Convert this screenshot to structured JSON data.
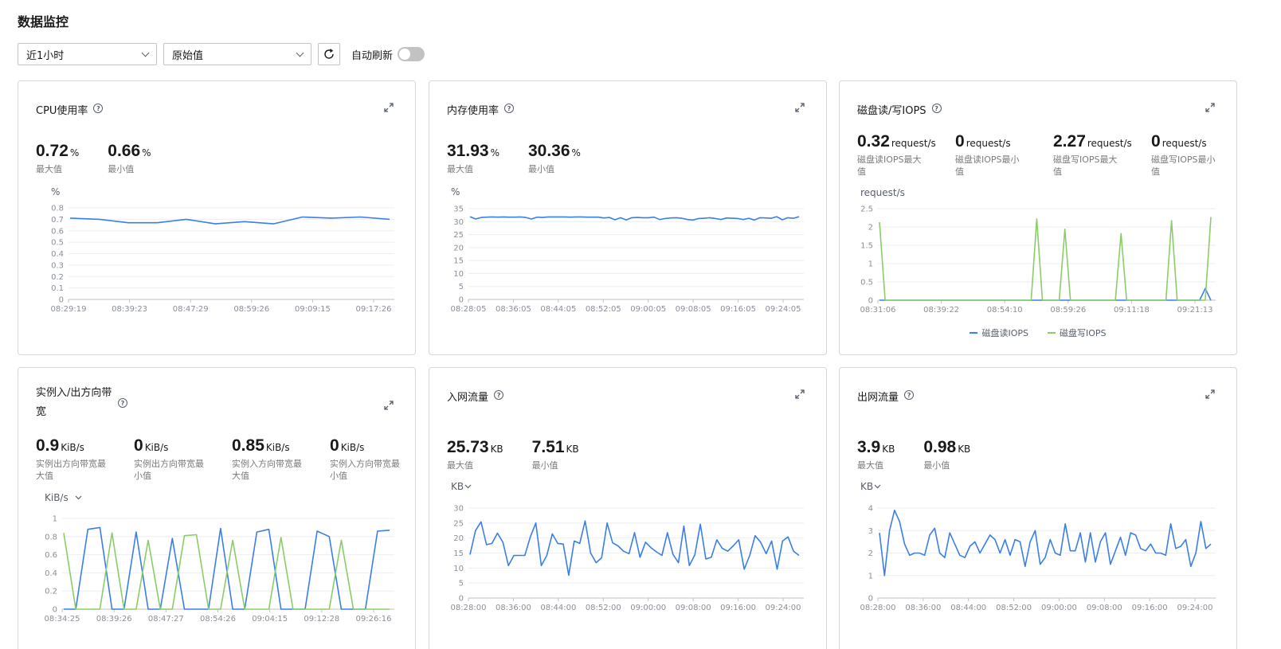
{
  "page": {
    "title": "数据监控"
  },
  "toolbar": {
    "time_range": "近1小时",
    "value_type": "原始值",
    "auto_refresh_label": "自动刷新",
    "auto_refresh_on": false
  },
  "colors": {
    "blue": "#3a7ee8",
    "green": "#8acd66",
    "grid": "#eceef2"
  },
  "cards": [
    {
      "title": "CPU使用率",
      "metrics": [
        {
          "value": "0.72",
          "unit": "%",
          "label": "最大值"
        },
        {
          "value": "0.66",
          "unit": "%",
          "label": "最小值"
        }
      ],
      "axis_unit": "%"
    },
    {
      "title": "内存使用率",
      "metrics": [
        {
          "value": "31.93",
          "unit": "%",
          "label": "最大值"
        },
        {
          "value": "30.36",
          "unit": "%",
          "label": "最小值"
        }
      ],
      "axis_unit": "%"
    },
    {
      "title": "磁盘读/写IOPS",
      "metrics": [
        {
          "value": "0.32",
          "unit": "request/s",
          "label": "磁盘读IOPS最大值"
        },
        {
          "value": "0",
          "unit": "request/s",
          "label": "磁盘读IOPS最小值"
        },
        {
          "value": "2.27",
          "unit": "request/s",
          "label": "磁盘写IOPS最大值"
        },
        {
          "value": "0",
          "unit": "request/s",
          "label": "磁盘写IOPS最小值"
        }
      ],
      "axis_unit": "request/s",
      "legend": [
        "磁盘读IOPS",
        "磁盘写IOPS"
      ]
    },
    {
      "title": "实例入/出方向带宽",
      "metrics": [
        {
          "value": "0.9",
          "unit": "KiB/s",
          "label": "实例出方向带宽最大值"
        },
        {
          "value": "0",
          "unit": "KiB/s",
          "label": "实例出方向带宽最小值"
        },
        {
          "value": "0.85",
          "unit": "KiB/s",
          "label": "实例入方向带宽最大值"
        },
        {
          "value": "0",
          "unit": "KiB/s",
          "label": "实例入方向带宽最小值"
        }
      ],
      "axis_unit": "KiB/s"
    },
    {
      "title": "入网流量",
      "metrics": [
        {
          "value": "25.73",
          "unit": "KB",
          "label": "最大值"
        },
        {
          "value": "7.51",
          "unit": "KB",
          "label": "最小值"
        }
      ],
      "axis_unit": "KB"
    },
    {
      "title": "出网流量",
      "metrics": [
        {
          "value": "3.9",
          "unit": "KB",
          "label": "最大值"
        },
        {
          "value": "0.98",
          "unit": "KB",
          "label": "最小值"
        }
      ],
      "axis_unit": "KB"
    }
  ],
  "chart_data": [
    {
      "type": "line",
      "yticks": [
        "0",
        "0.1",
        "0.2",
        "0.3",
        "0.4",
        "0.5",
        "0.6",
        "0.7",
        "0.8"
      ],
      "ylim": [
        0,
        0.8
      ],
      "xticks": [
        "08:29:19",
        "08:39:23",
        "08:47:29",
        "08:59:26",
        "09:09:15",
        "09:17:26"
      ],
      "series": [
        {
          "values": [
            0.71,
            0.7,
            0.67,
            0.67,
            0.7,
            0.66,
            0.68,
            0.66,
            0.72,
            0.71,
            0.72,
            0.7
          ]
        }
      ]
    },
    {
      "type": "line",
      "yticks": [
        "0",
        "5",
        "10",
        "15",
        "20",
        "25",
        "30",
        "35"
      ],
      "ylim": [
        0,
        35
      ],
      "xticks": [
        "08:28:05",
        "08:36:05",
        "08:44:05",
        "08:52:05",
        "09:00:05",
        "09:08:05",
        "09:16:05",
        "09:24:05"
      ],
      "series": [
        {
          "values": [
            31.9,
            31.0,
            31.6,
            31.7,
            31.8,
            31.7,
            31.8,
            31.7,
            31.7,
            31.8,
            31.6,
            31.0,
            31.7,
            31.6,
            31.8,
            31.8,
            31.8,
            31.8,
            31.7,
            31.8,
            31.8,
            31.7,
            31.7,
            31.7,
            31.4,
            31.6,
            30.7,
            31.5,
            30.6,
            31.5,
            31.6,
            31.5,
            31.5,
            31.7,
            30.8,
            31.2,
            31.4,
            31.5,
            31.3,
            30.8,
            30.6,
            31.2,
            31.3,
            31.5,
            31.2,
            30.8,
            31.4,
            31.3,
            31.2,
            30.8,
            31.3,
            30.6,
            31.5,
            31.4,
            31.3,
            31.9,
            30.7,
            31.5,
            31.3,
            31.9
          ]
        }
      ]
    },
    {
      "type": "line",
      "yticks": [
        "0",
        "0.5",
        "1",
        "1.5",
        "2",
        "2.5"
      ],
      "ylim": [
        0,
        2.5
      ],
      "xticks": [
        "08:31:06",
        "08:39:22",
        "08:54:10",
        "08:59:26",
        "09:11:18",
        "09:21:13"
      ],
      "series": [
        {
          "name": "磁盘读IOPS",
          "values": [
            0,
            0,
            0,
            0,
            0,
            0,
            0,
            0,
            0,
            0,
            0,
            0,
            0,
            0,
            0,
            0,
            0,
            0,
            0,
            0,
            0,
            0,
            0,
            0,
            0,
            0,
            0,
            0,
            0,
            0,
            0,
            0,
            0,
            0,
            0,
            0,
            0,
            0,
            0,
            0,
            0,
            0,
            0,
            0,
            0,
            0,
            0,
            0,
            0,
            0,
            0,
            0,
            0,
            0,
            0,
            0,
            0,
            0,
            0.32,
            0
          ]
        },
        {
          "name": "磁盘写IOPS",
          "values": [
            2.13,
            0,
            0,
            0,
            0,
            0,
            0,
            0,
            0,
            0,
            0,
            0,
            0,
            0,
            0,
            0,
            0,
            0,
            0,
            0,
            0,
            0,
            0,
            0,
            0,
            0,
            0,
            0,
            2.22,
            0,
            0,
            0,
            0,
            1.94,
            0,
            0,
            0,
            0,
            0,
            0,
            0,
            0,
            0,
            1.82,
            0,
            0,
            0,
            0,
            0,
            0,
            0,
            0,
            2.17,
            0,
            0,
            0,
            0,
            0,
            0,
            2.27
          ]
        }
      ]
    },
    {
      "type": "line",
      "yticks": [
        "0",
        "0.2",
        "0.4",
        "0.6",
        "0.8",
        "1"
      ],
      "ylim": [
        0,
        1
      ],
      "xticks": [
        "08:34:25",
        "08:39:26",
        "08:47:27",
        "08:54:26",
        "09:04:15",
        "09:12:28",
        "09:26:16"
      ],
      "series": [
        {
          "values": [
            0,
            0,
            0.88,
            0.9,
            0,
            0,
            0.85,
            0,
            0,
            0.78,
            0,
            0,
            0,
            0.89,
            0,
            0,
            0.85,
            0.88,
            0,
            0,
            0,
            0.86,
            0.8,
            0,
            0,
            0,
            0.86,
            0.87
          ]
        },
        {
          "values": [
            0.84,
            0,
            0,
            0,
            0.84,
            0,
            0,
            0.76,
            0,
            0,
            0.81,
            0.82,
            0,
            0,
            0.76,
            0,
            0,
            0,
            0.79,
            0,
            0,
            0,
            0,
            0.76,
            0,
            0,
            0,
            0
          ]
        }
      ]
    },
    {
      "type": "line",
      "yticks": [
        "0",
        "5",
        "10",
        "15",
        "20",
        "25",
        "30"
      ],
      "ylim": [
        0,
        30
      ],
      "xticks": [
        "08:28:00",
        "08:36:00",
        "08:44:00",
        "08:52:00",
        "09:00:00",
        "09:08:00",
        "09:16:00",
        "09:24:00"
      ],
      "series": [
        {
          "values": [
            14.5,
            22.5,
            25.4,
            17.8,
            18.2,
            21.6,
            18.6,
            10.8,
            14.2,
            14.2,
            14.2,
            20.4,
            25.0,
            10.8,
            14.2,
            21.4,
            18.2,
            18.0,
            7.6,
            19.0,
            18.2,
            25.7,
            15.0,
            11.8,
            13.4,
            25.0,
            18.4,
            17.4,
            15.6,
            14.8,
            21.8,
            13.6,
            18.6,
            16.8,
            15.4,
            14.2,
            21.8,
            14.6,
            11.8,
            24.0,
            10.8,
            14.4,
            24.6,
            13.0,
            13.6,
            19.4,
            16.6,
            15.6,
            17.4,
            19.4,
            9.6,
            14.2,
            20.8,
            18.6,
            14.8,
            19.0,
            9.6,
            19.0,
            20.4,
            15.6,
            14.2
          ]
        }
      ]
    },
    {
      "type": "line",
      "yticks": [
        "0",
        "1",
        "2",
        "3",
        "4"
      ],
      "ylim": [
        0,
        4
      ],
      "xticks": [
        "08:28:00",
        "08:36:00",
        "08:44:00",
        "08:52:00",
        "09:00:00",
        "09:08:00",
        "09:16:00",
        "09:24:00"
      ],
      "series": [
        {
          "values": [
            2.9,
            1.0,
            3.0,
            3.9,
            3.4,
            2.4,
            1.9,
            2.0,
            2.0,
            1.9,
            2.8,
            3.1,
            2.0,
            1.8,
            2.9,
            2.4,
            1.9,
            1.8,
            2.3,
            2.5,
            2.0,
            2.4,
            2.8,
            2.6,
            2.0,
            2.6,
            1.9,
            2.6,
            2.5,
            1.4,
            2.5,
            3.0,
            1.5,
            1.8,
            2.6,
            2.0,
            1.9,
            3.3,
            2.1,
            2.1,
            2.9,
            1.6,
            2.9,
            1.6,
            2.5,
            2.9,
            1.5,
            2.1,
            2.7,
            1.9,
            2.9,
            2.8,
            2.2,
            2.1,
            2.4,
            2.0,
            2.0,
            1.9,
            3.3,
            2.2,
            2.3,
            2.6,
            1.4,
            2.0,
            3.4,
            2.2,
            2.4
          ]
        }
      ]
    }
  ]
}
